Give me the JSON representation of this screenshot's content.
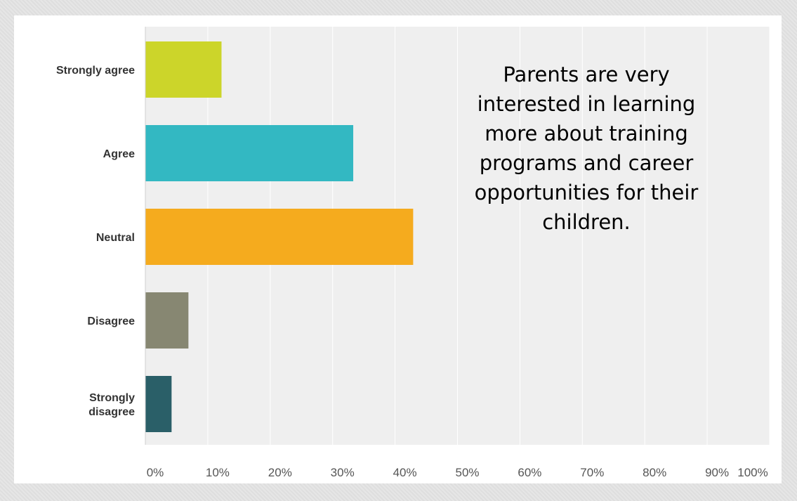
{
  "chart_data": {
    "type": "bar",
    "orientation": "horizontal",
    "categories": [
      "Strongly agree",
      "Agree",
      "Neutral",
      "Disagree",
      "Strongly disagree"
    ],
    "category_lines": [
      [
        "Strongly agree"
      ],
      [
        "Agree"
      ],
      [
        "Neutral"
      ],
      [
        "Disagree"
      ],
      [
        "Strongly",
        "disagree"
      ]
    ],
    "values": [
      12.2,
      33.3,
      42.9,
      6.9,
      4.2
    ],
    "colors": [
      "#ccd52a",
      "#33b8c2",
      "#f5ab1e",
      "#878772",
      "#2a5f68"
    ],
    "x_ticks": [
      "0%",
      "10%",
      "20%",
      "30%",
      "40%",
      "50%",
      "60%",
      "70%",
      "80%",
      "90%",
      "100%"
    ],
    "xlim": [
      0,
      100
    ],
    "grid": true,
    "plot_background": "#efefef",
    "annotation": "Parents are very interested in learning more about training programs and career opportunities for their children."
  }
}
